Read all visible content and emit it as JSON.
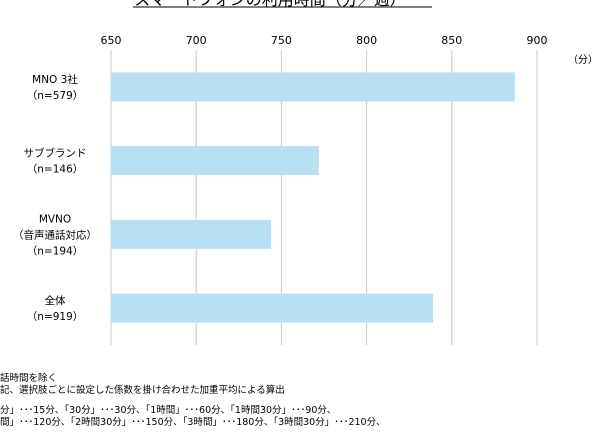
{
  "chart_data": {
    "type": "bar",
    "orientation": "horizontal",
    "title": "スマートフォンの利用時間（分／週）",
    "unit_label": "（分）",
    "xlim": [
      650,
      900
    ],
    "ticks": [
      650,
      700,
      750,
      800,
      850,
      900
    ],
    "grid": true,
    "bar_color": "#b7e0f5",
    "categories": [
      [
        "MNO 3社",
        "（n=579）"
      ],
      [
        "サブブランド",
        "（n=146）"
      ],
      [
        "MVNO",
        "（音声通話対応）",
        "（n=194）"
      ],
      [
        "全体",
        "（n=919）"
      ]
    ],
    "values": [
      887,
      772,
      744,
      839
    ]
  },
  "notes": {
    "line1": "話時間を除く",
    "line2": "記、選択肢ごとに設定した係数を掛け合わせた加重平均による算出",
    "line3": "分」･･･15分、「30分」･･･30分、「1時間」･･･60分、「1時間30分」･･･90分、",
    "line4": "間」･･･120分、「2時間30分」･･･150分、「3時間」･･･180分、「3時間30分」･･･210分、"
  }
}
